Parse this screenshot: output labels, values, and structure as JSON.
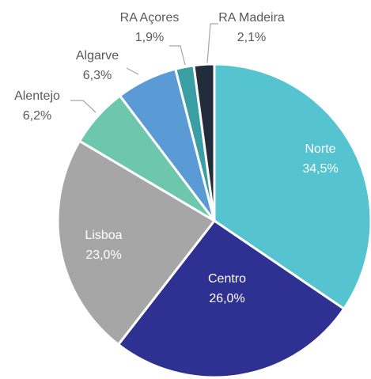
{
  "chart_data": {
    "type": "pie",
    "categories": [
      "Norte",
      "Centro",
      "Lisboa",
      "Alentejo",
      "Algarve",
      "RA Açores",
      "RA Madeira"
    ],
    "values": [
      34.5,
      26.0,
      23.0,
      6.2,
      6.3,
      1.9,
      2.1
    ],
    "value_labels": [
      "34,5%",
      "26,0%",
      "23,0%",
      "6,2%",
      "6,3%",
      "1,9%",
      "2,1%"
    ],
    "colors": [
      "#56c3d0",
      "#2e3192",
      "#a6a6a6",
      "#6cc7ad",
      "#5b9bd5",
      "#3a9ea5",
      "#232c3a"
    ]
  }
}
